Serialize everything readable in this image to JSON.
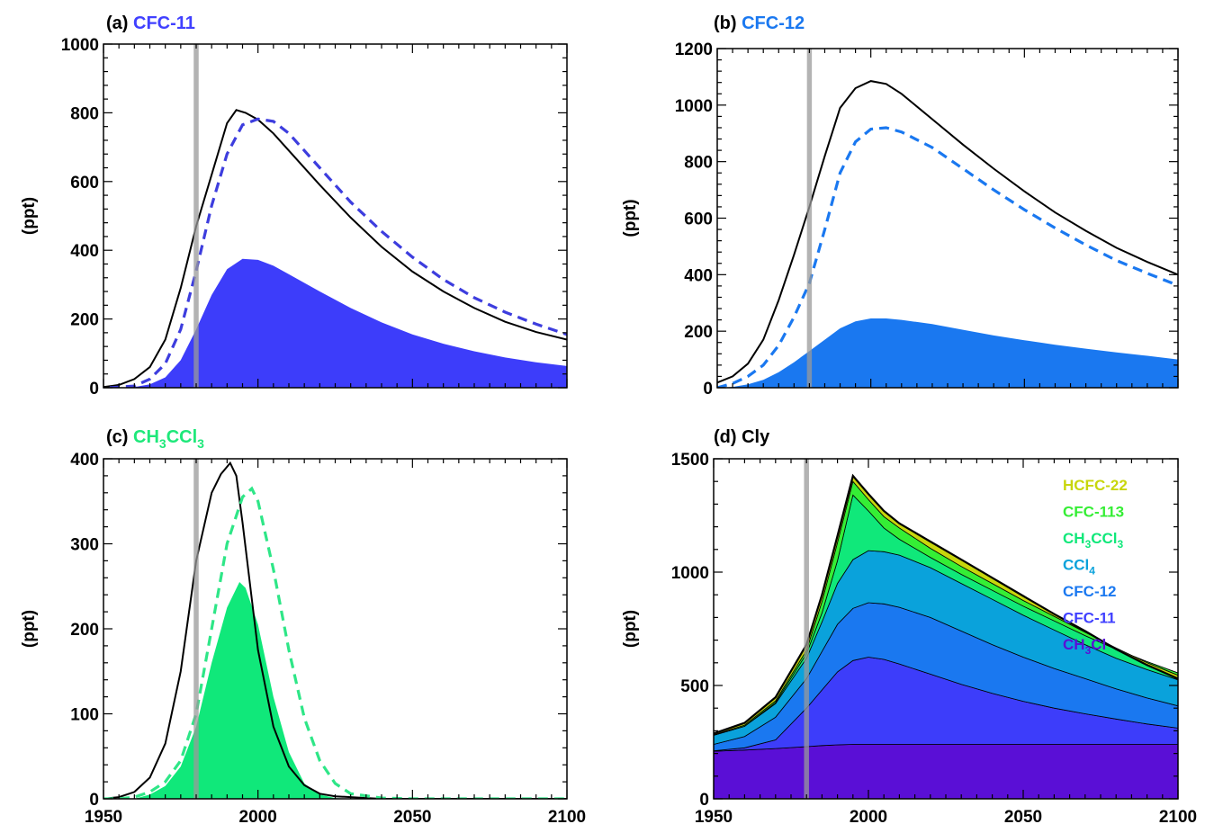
{
  "chart_data": [
    {
      "type": "area",
      "title_prefix": "(a)",
      "title_name": "CFC-11",
      "title_color": "#4040ff",
      "ylabel": "(ppt)",
      "xlim": [
        1950,
        2100
      ],
      "ylim": [
        0,
        1000
      ],
      "xticks": [
        1950,
        2000,
        2050,
        2100
      ],
      "xtick_labels": [],
      "yticks": [
        0,
        200,
        400,
        600,
        800,
        1000
      ],
      "ytick_labels": [
        "0",
        "200",
        "400",
        "600",
        "800",
        "1000"
      ],
      "fill_color": "#3d3dfa",
      "dash_color": "#3d3dde",
      "solid": {
        "x": [
          1950,
          1955,
          1960,
          1965,
          1970,
          1975,
          1980,
          1985,
          1990,
          1993,
          1996,
          2000,
          2005,
          2010,
          2020,
          2030,
          2040,
          2050,
          2060,
          2070,
          2080,
          2090,
          2100
        ],
        "y": [
          2,
          8,
          25,
          60,
          140,
          290,
          470,
          620,
          770,
          808,
          800,
          780,
          740,
          690,
          590,
          495,
          410,
          338,
          280,
          232,
          192,
          162,
          140
        ]
      },
      "dashed": {
        "x": [
          1952,
          1960,
          1965,
          1970,
          1975,
          1980,
          1985,
          1990,
          1995,
          2000,
          2005,
          2010,
          2020,
          2030,
          2040,
          2050,
          2060,
          2070,
          2080,
          2090,
          2100
        ],
        "y": [
          0,
          5,
          25,
          70,
          170,
          340,
          530,
          680,
          765,
          782,
          775,
          740,
          640,
          540,
          455,
          380,
          315,
          262,
          220,
          185,
          155
        ]
      },
      "filled": {
        "x": [
          1958,
          1960,
          1965,
          1970,
          1975,
          1980,
          1985,
          1990,
          1995,
          2000,
          2005,
          2010,
          2020,
          2030,
          2040,
          2050,
          2060,
          2070,
          2080,
          2090,
          2100
        ],
        "y": [
          0,
          2,
          10,
          30,
          80,
          170,
          270,
          345,
          375,
          372,
          355,
          330,
          280,
          232,
          190,
          155,
          128,
          106,
          88,
          74,
          63
        ]
      }
    },
    {
      "type": "area",
      "title_prefix": "(b)",
      "title_name": "CFC-12",
      "title_color": "#1a78f0",
      "ylabel": "(ppt)",
      "xlim": [
        1950,
        2100
      ],
      "ylim": [
        0,
        1200
      ],
      "xticks": [
        1950,
        2000,
        2050,
        2100
      ],
      "xtick_labels": [],
      "yticks": [
        0,
        200,
        400,
        600,
        800,
        1000,
        1200
      ],
      "ytick_labels": [
        "0",
        "200",
        "400",
        "600",
        "800",
        "1000",
        "1200"
      ],
      "fill_color": "#1a78f0",
      "dash_color": "#1a78f0",
      "solid": {
        "x": [
          1950,
          1955,
          1960,
          1965,
          1970,
          1975,
          1980,
          1985,
          1990,
          1995,
          2000,
          2005,
          2010,
          2020,
          2030,
          2040,
          2050,
          2060,
          2070,
          2080,
          2090,
          2100
        ],
        "y": [
          18,
          40,
          85,
          170,
          310,
          470,
          640,
          820,
          990,
          1060,
          1085,
          1075,
          1040,
          950,
          860,
          775,
          695,
          620,
          555,
          495,
          445,
          400
        ]
      },
      "dashed": {
        "x": [
          1950,
          1955,
          1960,
          1965,
          1970,
          1975,
          1980,
          1985,
          1990,
          1995,
          2000,
          2005,
          2010,
          2020,
          2030,
          2040,
          2050,
          2060,
          2070,
          2080,
          2090,
          2100
        ],
        "y": [
          0,
          15,
          40,
          80,
          150,
          250,
          370,
          560,
          760,
          870,
          915,
          920,
          905,
          850,
          775,
          700,
          630,
          565,
          505,
          450,
          405,
          362
        ]
      },
      "filled": {
        "x": [
          1952,
          1955,
          1960,
          1965,
          1970,
          1975,
          1980,
          1985,
          1990,
          1995,
          2000,
          2005,
          2010,
          2020,
          2030,
          2040,
          2050,
          2060,
          2070,
          2080,
          2090,
          2100
        ],
        "y": [
          0,
          3,
          12,
          28,
          55,
          90,
          130,
          170,
          210,
          235,
          245,
          245,
          240,
          225,
          205,
          185,
          168,
          152,
          138,
          125,
          113,
          100
        ]
      }
    },
    {
      "type": "area",
      "title_prefix": "(c)",
      "title_name": "CH",
      "title_sub1": "3",
      "title_mid": "CCl",
      "title_sub2": "3",
      "title_color": "#1ee87a",
      "ylabel": "(ppt)",
      "xlim": [
        1950,
        2100
      ],
      "ylim": [
        0,
        400
      ],
      "xticks": [
        1950,
        2000,
        2050,
        2100
      ],
      "xtick_labels": [
        "1950",
        "2000",
        "2050",
        "2100"
      ],
      "yticks": [
        0,
        100,
        200,
        300,
        400
      ],
      "ytick_labels": [
        "0",
        "100",
        "200",
        "300",
        "400"
      ],
      "fill_color": "#10e87a",
      "dash_color": "#2ee687",
      "solid": {
        "x": [
          1950,
          1955,
          1960,
          1965,
          1970,
          1975,
          1980,
          1985,
          1988,
          1991,
          1993,
          1995,
          1998,
          2000,
          2005,
          2010,
          2015,
          2020,
          2025,
          2030,
          2035,
          2040,
          2050,
          2100
        ],
        "y": [
          0,
          2,
          8,
          25,
          65,
          150,
          280,
          360,
          382,
          395,
          380,
          325,
          235,
          175,
          85,
          38,
          16,
          6,
          3,
          2,
          1,
          0,
          0,
          0
        ]
      },
      "dashed": {
        "x": [
          1950,
          1955,
          1960,
          1965,
          1970,
          1975,
          1980,
          1985,
          1990,
          1995,
          1998,
          2000,
          2005,
          2010,
          2015,
          2020,
          2025,
          2030,
          2040,
          2050,
          2100
        ],
        "y": [
          0,
          0,
          2,
          8,
          20,
          45,
          100,
          200,
          300,
          355,
          365,
          350,
          270,
          175,
          95,
          45,
          18,
          6,
          1,
          0,
          0
        ]
      },
      "filled": {
        "x": [
          1960,
          1965,
          1970,
          1975,
          1980,
          1985,
          1990,
          1994,
          1996,
          2000,
          2005,
          2010,
          2015,
          2020,
          2025,
          2030
        ],
        "y": [
          0,
          5,
          15,
          38,
          85,
          160,
          225,
          255,
          248,
          205,
          120,
          55,
          18,
          5,
          1,
          0
        ]
      }
    },
    {
      "type": "area",
      "stacked": true,
      "title_prefix": "(d)",
      "title_name": "Cly",
      "title_color": "#000000",
      "ylabel": "(ppt)",
      "xlim": [
        1950,
        2100
      ],
      "ylim": [
        0,
        1500
      ],
      "xticks": [
        1950,
        2000,
        2050,
        2100
      ],
      "xtick_labels": [
        "1950",
        "2000",
        "2050",
        "2100"
      ],
      "yticks": [
        0,
        500,
        1000,
        1500
      ],
      "ytick_labels": [
        "0",
        "500",
        "1000",
        "1500"
      ],
      "x": [
        1950,
        1960,
        1970,
        1980,
        1985,
        1990,
        1995,
        2000,
        2005,
        2010,
        2020,
        2030,
        2040,
        2050,
        2060,
        2070,
        2080,
        2090,
        2100
      ],
      "series": [
        {
          "name": "CH3Cl",
          "sub": "",
          "label_html": [
            "CH",
            "3",
            "Cl"
          ],
          "color": "#5a0fd6",
          "text_color": "#5a0fd6",
          "top": [
            210,
            215,
            222,
            230,
            235,
            238,
            240,
            240,
            240,
            240,
            240,
            240,
            240,
            240,
            240,
            240,
            240,
            240,
            240
          ]
        },
        {
          "name": "CFC-11",
          "label_html": [
            "CFC-11"
          ],
          "color": "#3d3dfa",
          "text_color": "#4040ff",
          "top": [
            212,
            225,
            260,
            400,
            480,
            560,
            610,
            625,
            615,
            595,
            550,
            505,
            465,
            430,
            400,
            375,
            352,
            330,
            312
          ]
        },
        {
          "name": "CFC-12",
          "label_html": [
            "CFC-12"
          ],
          "color": "#1a78f0",
          "text_color": "#1a78f0",
          "top": [
            240,
            275,
            360,
            530,
            650,
            770,
            840,
            865,
            860,
            845,
            800,
            740,
            680,
            625,
            575,
            530,
            485,
            445,
            410
          ]
        },
        {
          "name": "CCl4",
          "label_html": [
            "CCl",
            "4",
            ""
          ],
          "color": "#0aa2db",
          "text_color": "#0aa2db",
          "top": [
            280,
            320,
            420,
            620,
            780,
            950,
            1055,
            1095,
            1090,
            1075,
            1020,
            950,
            880,
            810,
            745,
            680,
            620,
            570,
            525
          ]
        },
        {
          "name": "CH3CCl3",
          "label_html": [
            "CH",
            "3",
            "CCl",
            "3"
          ],
          "color": "#10e87a",
          "text_color": "#10e87a",
          "top": [
            280,
            320,
            425,
            640,
            820,
            1050,
            1340,
            1270,
            1195,
            1145,
            1065,
            990,
            920,
            850,
            785,
            720,
            660,
            605,
            555
          ]
        },
        {
          "name": "CFC-113",
          "label_html": [
            "CFC-113"
          ],
          "color": "#35ee35",
          "text_color": "#35ee35",
          "top": [
            282,
            325,
            432,
            655,
            870,
            1130,
            1400,
            1320,
            1245,
            1195,
            1105,
            1025,
            950,
            875,
            805,
            735,
            665,
            600,
            545
          ]
        },
        {
          "name": "HCFC-22",
          "label_html": [
            "HCFC-22"
          ],
          "color": "#c8d60c",
          "text_color": "#c8d60c",
          "top": [
            288,
            335,
            448,
            680,
            900,
            1160,
            1425,
            1345,
            1270,
            1215,
            1135,
            1055,
            975,
            895,
            815,
            740,
            660,
            590,
            530
          ]
        }
      ]
    }
  ]
}
